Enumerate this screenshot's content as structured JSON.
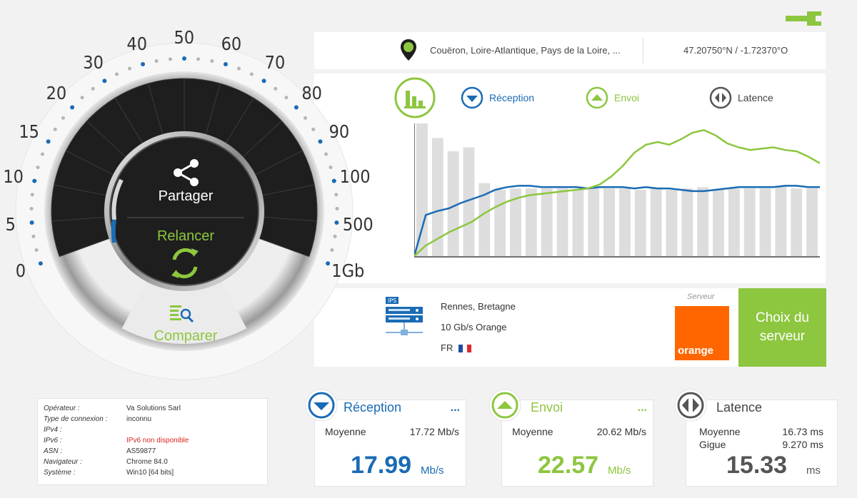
{
  "location": {
    "city": "Couëron, Loire-Atlantique, Pays de la Loire, ...",
    "coords": "47.20750°N / -1.72370°O"
  },
  "legend": {
    "download": "Réception",
    "upload": "Envoi",
    "latency": "Latence"
  },
  "gauge": {
    "scale": [
      "0",
      "5",
      "10",
      "15",
      "20",
      "30",
      "40",
      "50",
      "60",
      "70",
      "80",
      "90",
      "100",
      "500",
      "1Gb"
    ],
    "share_label": "Partager",
    "restart_label": "Relancer",
    "compare_label": "Comparer"
  },
  "chart_data": {
    "type": "bar",
    "title": "",
    "bars": [
      100,
      89,
      79,
      82,
      55,
      50,
      51,
      51,
      51,
      51,
      50,
      51,
      51,
      51,
      50,
      51,
      50,
      51,
      52,
      50,
      51,
      51,
      51,
      53,
      51,
      51
    ],
    "series": [
      {
        "name": "Réception",
        "color": "#1a6bb5",
        "values": [
          0,
          31,
          34,
          36,
          40,
          43,
          46,
          50,
          52,
          53,
          53,
          52,
          52,
          52,
          52,
          51,
          52,
          52,
          52,
          51,
          52,
          51,
          51,
          50,
          49,
          49,
          50,
          51,
          52,
          52,
          52,
          52,
          53,
          53,
          52,
          52
        ]
      },
      {
        "name": "Envoi",
        "color": "#8dc63f",
        "values": [
          0,
          8,
          13,
          18,
          22,
          26,
          32,
          37,
          41,
          44,
          46,
          47,
          48,
          49,
          50,
          51,
          54,
          60,
          68,
          78,
          84,
          86,
          84,
          88,
          93,
          95,
          91,
          85,
          82,
          80,
          81,
          82,
          80,
          79,
          75,
          70
        ]
      }
    ]
  },
  "server": {
    "city": "Rennes, Bretagne",
    "provider": "10 Gb/s Orange",
    "country": "FR",
    "label": "Serveur",
    "logo_text": "orange",
    "choose_label": "Choix du serveur"
  },
  "info": {
    "rows": [
      {
        "key": "Opérateur :",
        "value": "Va Solutions Sarl"
      },
      {
        "key": "Type de connexion :",
        "value": "inconnu"
      },
      {
        "key": "IPv4 :",
        "value": ""
      },
      {
        "key": "IPv6 :",
        "value": "IPv6 non disponible"
      },
      {
        "key": "ASN :",
        "value": "AS59877"
      },
      {
        "key": "Navigateur :",
        "value": "Chrome 84.0"
      },
      {
        "key": "Système :",
        "value": "Win10 [64 bits]"
      }
    ]
  },
  "results": {
    "download": {
      "title": "Réception",
      "more": "...",
      "avg_label": "Moyenne",
      "avg_value": "17.72 Mb/s",
      "value": "17.99",
      "unit": "Mb/s"
    },
    "upload": {
      "title": "Envoi",
      "more": "...",
      "avg_label": "Moyenne",
      "avg_value": "20.62 Mb/s",
      "value": "22.57",
      "unit": "Mb/s"
    },
    "latency": {
      "title": "Latence",
      "avg_label": "Moyenne",
      "avg_value": "16.73 ms",
      "jitter_label": "Gigue",
      "jitter_value": "9.270 ms",
      "value": "15.33",
      "unit": "ms"
    }
  },
  "colors": {
    "green": "#8dc63f",
    "blue": "#1a6bb5",
    "dark": "#1e1e1e",
    "orange": "#ff6600"
  }
}
